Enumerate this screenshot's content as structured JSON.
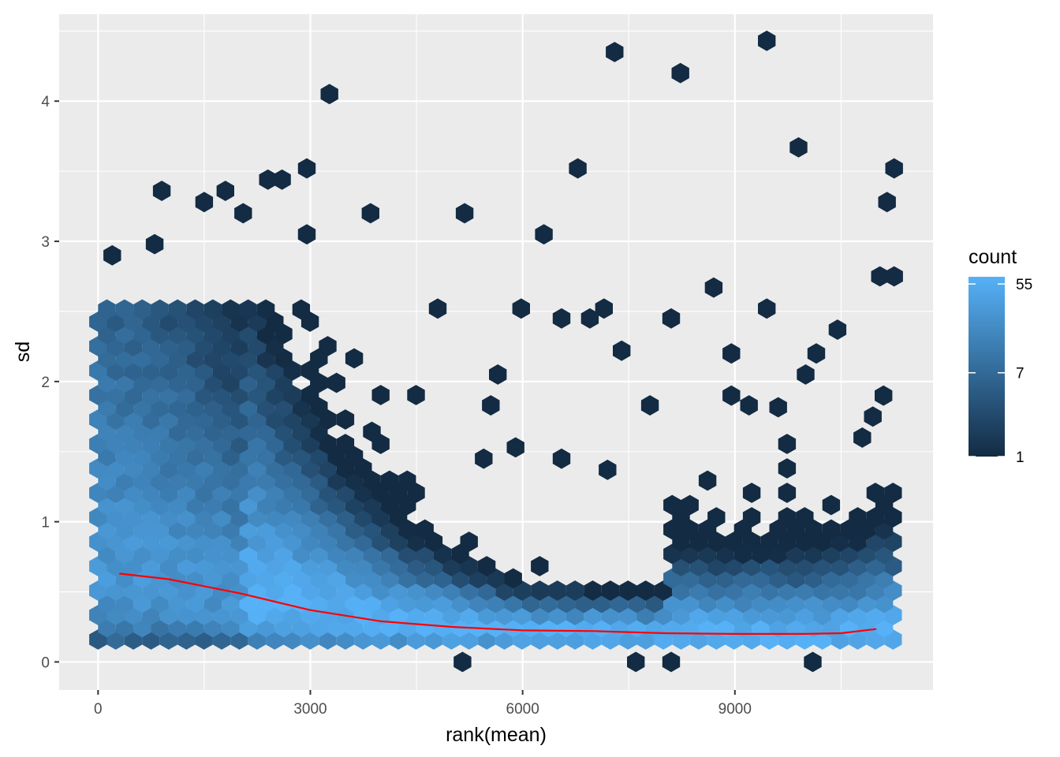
{
  "chart_data": {
    "type": "hexbin",
    "xlabel": "rank(mean)",
    "ylabel": "sd",
    "xlim": [
      -550,
      11800
    ],
    "ylim": [
      -0.2,
      4.62
    ],
    "x_ticks": [
      "0",
      "3000",
      "6000",
      "9000"
    ],
    "x_tick_values": [
      0,
      3000,
      6000,
      9000
    ],
    "y_ticks": [
      "0",
      "1",
      "2",
      "3",
      "4"
    ],
    "y_tick_values": [
      0,
      1,
      2,
      3,
      4
    ],
    "grid": true,
    "legend": {
      "title": "count",
      "position": "right",
      "scale": "log",
      "labels": [
        "55",
        "7",
        "1"
      ],
      "label_values": [
        55,
        7,
        1
      ],
      "low_color": "#132B43",
      "high_color": "#56B1F7"
    },
    "n_points": 11300,
    "trend_line": {
      "color": "#FF0000",
      "x": [
        300,
        1000,
        1500,
        2000,
        2500,
        3000,
        3500,
        4000,
        5000,
        6000,
        7000,
        8000,
        9000,
        10000,
        10500,
        11000
      ],
      "y": [
        0.63,
        0.59,
        0.54,
        0.49,
        0.43,
        0.37,
        0.33,
        0.29,
        0.25,
        0.225,
        0.22,
        0.205,
        0.2,
        0.2,
        0.205,
        0.235
      ]
    },
    "outlier_bins": [
      [
        3270,
        4.05
      ],
      [
        7300,
        4.35
      ],
      [
        8230,
        4.2
      ],
      [
        9450,
        4.43
      ],
      [
        9900,
        3.67
      ],
      [
        11250,
        3.52
      ],
      [
        11150,
        3.28
      ],
      [
        6780,
        3.52
      ],
      [
        6300,
        3.05
      ],
      [
        5180,
        3.2
      ],
      [
        3850,
        3.2
      ],
      [
        2950,
        3.52
      ],
      [
        2950,
        3.05
      ],
      [
        11250,
        2.75
      ],
      [
        11050,
        2.75
      ],
      [
        8700,
        2.67
      ],
      [
        9450,
        2.52
      ],
      [
        5980,
        2.52
      ],
      [
        4800,
        2.52
      ],
      [
        7150,
        2.52
      ],
      [
        7400,
        2.22
      ],
      [
        6550,
        2.45
      ],
      [
        6950,
        2.45
      ],
      [
        8100,
        2.45
      ],
      [
        10450,
        2.37
      ],
      [
        10150,
        2.2
      ],
      [
        10000,
        2.05
      ],
      [
        8950,
        2.2
      ],
      [
        8950,
        1.9
      ],
      [
        9200,
        1.83
      ],
      [
        7800,
        1.83
      ],
      [
        11100,
        1.9
      ],
      [
        10950,
        1.75
      ],
      [
        10800,
        1.6
      ],
      [
        5650,
        2.05
      ],
      [
        5550,
        1.83
      ],
      [
        5900,
        1.53
      ],
      [
        5450,
        1.45
      ],
      [
        6550,
        1.45
      ],
      [
        7200,
        1.37
      ],
      [
        7600,
        0
      ],
      [
        8100,
        0
      ],
      [
        10100,
        0
      ],
      [
        5150,
        0
      ],
      [
        900,
        3.36
      ],
      [
        1800,
        3.36
      ],
      [
        1500,
        3.28
      ],
      [
        2400,
        3.44
      ],
      [
        2600,
        3.44
      ],
      [
        2050,
        3.2
      ],
      [
        200,
        2.9
      ],
      [
        800,
        2.98
      ]
    ]
  }
}
